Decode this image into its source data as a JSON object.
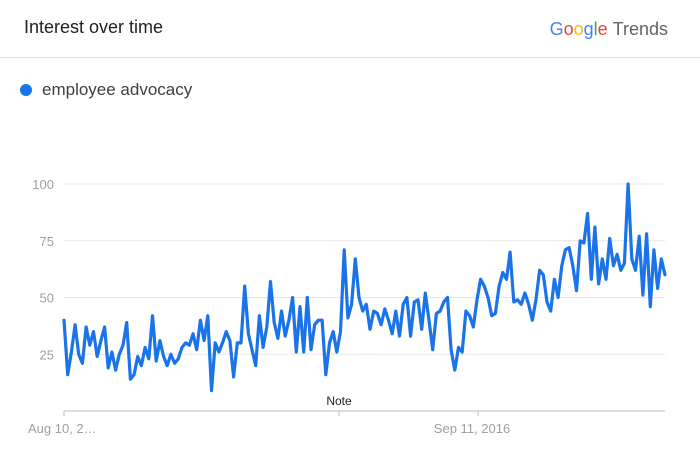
{
  "header": {
    "title": "Interest over time",
    "brand_letters": [
      {
        "ch": "G",
        "color": "#4285F4"
      },
      {
        "ch": "o",
        "color": "#EA4335"
      },
      {
        "ch": "o",
        "color": "#FBBC05"
      },
      {
        "ch": "g",
        "color": "#4285F4"
      },
      {
        "ch": "l",
        "color": "#34A853"
      },
      {
        "ch": "e",
        "color": "#EA4335"
      }
    ],
    "brand_product": "Trends"
  },
  "chart_data": {
    "type": "line",
    "series": [
      {
        "name": "employee advocacy",
        "color": "#1a73e8",
        "values": [
          40,
          16,
          26,
          38,
          25,
          21,
          37,
          29,
          35,
          24,
          31,
          37,
          19,
          26,
          18,
          25,
          29,
          39,
          14,
          16,
          24,
          20,
          28,
          23,
          42,
          22,
          31,
          24,
          20,
          25,
          21,
          23,
          28,
          30,
          29,
          34,
          27,
          40,
          31,
          42,
          9,
          30,
          26,
          30,
          35,
          31,
          15,
          30,
          30,
          55,
          34,
          27,
          20,
          42,
          28,
          37,
          57,
          39,
          32,
          44,
          33,
          40,
          50,
          26,
          46,
          26,
          50,
          27,
          38,
          40,
          40,
          16,
          30,
          35,
          26,
          35,
          71,
          41,
          47,
          67,
          50,
          44,
          47,
          36,
          44,
          43,
          38,
          45,
          40,
          34,
          44,
          33,
          47,
          50,
          33,
          48,
          49,
          36,
          52,
          40,
          27,
          43,
          44,
          48,
          50,
          27,
          18,
          28,
          26,
          44,
          42,
          37,
          49,
          58,
          55,
          50,
          42,
          43,
          55,
          61,
          58,
          70,
          48,
          49,
          47,
          52,
          47,
          40,
          49,
          62,
          60,
          48,
          44,
          58,
          50,
          64,
          71,
          72,
          64,
          53,
          75,
          74,
          87,
          58,
          81,
          56,
          67,
          58,
          76,
          64,
          69,
          62,
          65,
          100,
          67,
          62,
          77,
          51,
          78,
          46,
          71,
          54,
          67,
          60
        ]
      }
    ],
    "x_tick_labels": [
      "Aug 10, 2…",
      "Sep 11, 2016"
    ],
    "y_tick_labels": [
      "100",
      "75",
      "50",
      "25"
    ],
    "y_ticks": [
      100,
      75,
      50,
      25
    ],
    "ylim": [
      0,
      100
    ],
    "annotation": "Note",
    "grid": true,
    "legend_position": "top-left"
  }
}
